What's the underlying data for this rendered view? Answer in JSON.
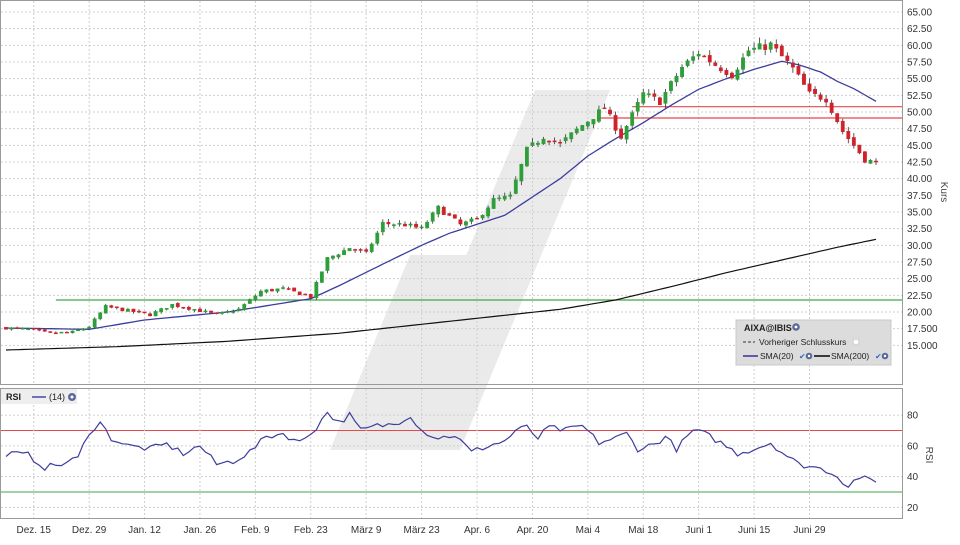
{
  "chart_data": {
    "type": "candlestick",
    "symbol": "AIXA@IBIS",
    "ylabel": "Kurs",
    "ylim": [
      12.5,
      65.0
    ],
    "y_ticks": [
      "15.000",
      "17.500",
      "20.00",
      "22.50",
      "25.00",
      "27.50",
      "30.00",
      "32.50",
      "35.00",
      "37.50",
      "40.00",
      "42.50",
      "45.00",
      "47.50",
      "50.00",
      "52.50",
      "55.00",
      "57.50",
      "60.00",
      "62.50",
      "65.00"
    ],
    "y_tick_values": [
      15,
      17.5,
      20,
      22.5,
      25,
      27.5,
      30,
      32.5,
      35,
      37.5,
      40,
      42.5,
      45,
      47.5,
      50,
      52.5,
      55,
      57.5,
      60,
      62.5,
      65
    ],
    "x_ticks": [
      "Dez. 15",
      "Dez. 29",
      "Jan. 12",
      "Jan. 26",
      "Feb. 9",
      "Feb. 23",
      "März 9",
      "März 23",
      "Apr. 6",
      "Apr. 20",
      "Mai 4",
      "Mai 18",
      "Juni 1",
      "Juni 15",
      "Juni 29"
    ],
    "x_tick_sessions": [
      5,
      15,
      25,
      35,
      45,
      55,
      65,
      75,
      85,
      95,
      105,
      115,
      125,
      135,
      145
    ],
    "session_count": 158,
    "grid": true,
    "legend": {
      "title": "AIXA@IBIS",
      "prev_close_label": "Vorheriger Schlusskurs",
      "sma20_label": "SMA(20)",
      "sma200_label": "SMA(200)",
      "placement": "bottom-right"
    },
    "horizontal_lines": [
      {
        "value": 50.8,
        "color": "#e8474c"
      },
      {
        "value": 49.1,
        "color": "#e8474c"
      },
      {
        "value": 21.8,
        "color": "#3daa46"
      }
    ],
    "close_anchors": [
      [
        0,
        17.6
      ],
      [
        4,
        17.4
      ],
      [
        8,
        16.8
      ],
      [
        12,
        17.0
      ],
      [
        15,
        17.8
      ],
      [
        18,
        20.8
      ],
      [
        22,
        20.2
      ],
      [
        26,
        19.6
      ],
      [
        30,
        21.1
      ],
      [
        34,
        20.4
      ],
      [
        38,
        19.6
      ],
      [
        42,
        20.4
      ],
      [
        46,
        23.1
      ],
      [
        50,
        23.5
      ],
      [
        55,
        22.3
      ],
      [
        58,
        28.0
      ],
      [
        62,
        29.6
      ],
      [
        65,
        28.8
      ],
      [
        68,
        33.3
      ],
      [
        72,
        33.1
      ],
      [
        75,
        32.5
      ],
      [
        78,
        35.6
      ],
      [
        82,
        33.1
      ],
      [
        85,
        33.9
      ],
      [
        88,
        36.8
      ],
      [
        91,
        37.3
      ],
      [
        94,
        44.3
      ],
      [
        97,
        46.3
      ],
      [
        100,
        45.2
      ],
      [
        104,
        48.0
      ],
      [
        108,
        50.6
      ],
      [
        111,
        46.3
      ],
      [
        115,
        52.7
      ],
      [
        118,
        51.6
      ],
      [
        122,
        56.7
      ],
      [
        125,
        58.9
      ],
      [
        128,
        57.1
      ],
      [
        131,
        55.6
      ],
      [
        134,
        59.2
      ],
      [
        138,
        60.1
      ],
      [
        142,
        56.5
      ],
      [
        145,
        52.7
      ],
      [
        148,
        52.0
      ],
      [
        151,
        47.1
      ],
      [
        155,
        42.9
      ],
      [
        157,
        42.3
      ]
    ],
    "sma20_points": [
      [
        0,
        17.6
      ],
      [
        15,
        17.4
      ],
      [
        25,
        18.8
      ],
      [
        40,
        20.0
      ],
      [
        55,
        22.0
      ],
      [
        60,
        23.9
      ],
      [
        70,
        28.0
      ],
      [
        75,
        30.0
      ],
      [
        80,
        31.8
      ],
      [
        90,
        34.5
      ],
      [
        100,
        40.0
      ],
      [
        105,
        43.4
      ],
      [
        110,
        46.0
      ],
      [
        115,
        48.4
      ],
      [
        120,
        51.0
      ],
      [
        125,
        53.4
      ],
      [
        130,
        55.0
      ],
      [
        135,
        56.4
      ],
      [
        140,
        57.6
      ],
      [
        143,
        57.1
      ],
      [
        147,
        56.0
      ],
      [
        150,
        54.6
      ],
      [
        153,
        53.5
      ],
      [
        157,
        51.6
      ]
    ],
    "sma200_points": [
      [
        0,
        14.3
      ],
      [
        20,
        14.8
      ],
      [
        40,
        15.6
      ],
      [
        60,
        16.8
      ],
      [
        80,
        18.6
      ],
      [
        100,
        20.4
      ],
      [
        110,
        21.8
      ],
      [
        120,
        23.8
      ],
      [
        130,
        25.9
      ],
      [
        140,
        27.8
      ],
      [
        150,
        29.7
      ],
      [
        157,
        30.9
      ]
    ],
    "rsi": {
      "label": "RSI",
      "period_label": "(14)",
      "ylim": [
        15,
        95
      ],
      "y_ticks": [
        "20",
        "40",
        "60",
        "80"
      ],
      "y_tick_values": [
        20,
        40,
        60,
        80
      ],
      "upper_level": 70,
      "lower_level": 30,
      "points": [
        [
          0,
          55
        ],
        [
          4,
          54
        ],
        [
          7,
          46
        ],
        [
          10,
          48
        ],
        [
          13,
          52
        ],
        [
          15,
          69
        ],
        [
          17,
          75
        ],
        [
          19,
          65
        ],
        [
          22,
          60
        ],
        [
          26,
          58
        ],
        [
          29,
          61
        ],
        [
          32,
          55
        ],
        [
          35,
          60
        ],
        [
          38,
          48
        ],
        [
          41,
          50
        ],
        [
          44,
          56
        ],
        [
          47,
          66
        ],
        [
          50,
          68
        ],
        [
          53,
          62
        ],
        [
          56,
          72
        ],
        [
          58,
          82
        ],
        [
          60,
          75
        ],
        [
          62,
          80
        ],
        [
          64,
          70
        ],
        [
          67,
          73
        ],
        [
          70,
          74
        ],
        [
          73,
          80
        ],
        [
          75,
          70
        ],
        [
          78,
          65
        ],
        [
          81,
          67
        ],
        [
          84,
          56
        ],
        [
          87,
          60
        ],
        [
          90,
          63
        ],
        [
          92,
          70
        ],
        [
          94,
          72
        ],
        [
          96,
          65
        ],
        [
          98,
          72
        ],
        [
          101,
          70
        ],
        [
          104,
          73
        ],
        [
          107,
          62
        ],
        [
          110,
          65
        ],
        [
          112,
          68
        ],
        [
          114,
          58
        ],
        [
          117,
          61
        ],
        [
          119,
          66
        ],
        [
          121,
          58
        ],
        [
          124,
          70
        ],
        [
          126,
          68
        ],
        [
          129,
          62
        ],
        [
          132,
          55
        ],
        [
          135,
          58
        ],
        [
          138,
          62
        ],
        [
          140,
          56
        ],
        [
          143,
          48
        ],
        [
          146,
          46
        ],
        [
          149,
          43
        ],
        [
          152,
          34
        ],
        [
          154,
          40
        ],
        [
          156,
          37
        ],
        [
          157,
          36
        ]
      ]
    }
  }
}
